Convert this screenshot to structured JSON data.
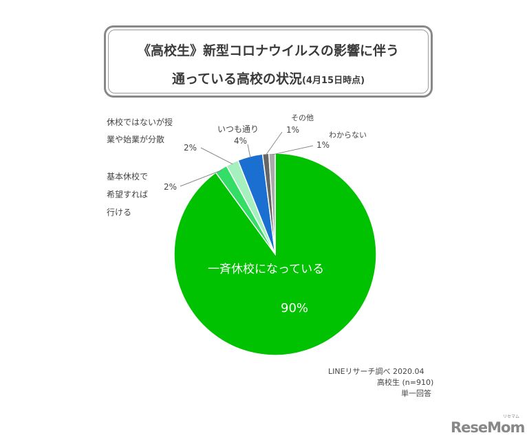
{
  "title": {
    "line1": "《高校生》新型コロナウイルスの影響に伴う",
    "line2_main": "通っている高校の状況",
    "line2_note": "(4月15日時点)"
  },
  "chart_data": {
    "type": "pie",
    "slices": [
      {
        "label": "一斉休校になっている",
        "value": 90,
        "value_label": "90%",
        "color": "#00c200"
      },
      {
        "label_lines": [
          "基本休校で",
          "希望すれば",
          "行ける"
        ],
        "value": 2,
        "value_label": "2%",
        "color": "#33dd66"
      },
      {
        "label_lines": [
          "休校ではないが授",
          "業や始業が分散"
        ],
        "value": 2,
        "value_label": "2%",
        "color": "#a6efbe"
      },
      {
        "label": "いつも通り",
        "value": 4,
        "value_label": "4%",
        "color": "#1a6fd0"
      },
      {
        "label": "その他",
        "value": 1,
        "value_label": "1%",
        "color": "#666666"
      },
      {
        "label": "わからない",
        "value": 1,
        "value_label": "1%",
        "color": "#aaaaaa"
      }
    ]
  },
  "source": {
    "line1": "LINEリサーチ調べ 2020.04",
    "line2": "高校生 (n=910)",
    "line3": "単一回答"
  },
  "logo": {
    "text": "ReseMom",
    "sup": "リセマム"
  }
}
